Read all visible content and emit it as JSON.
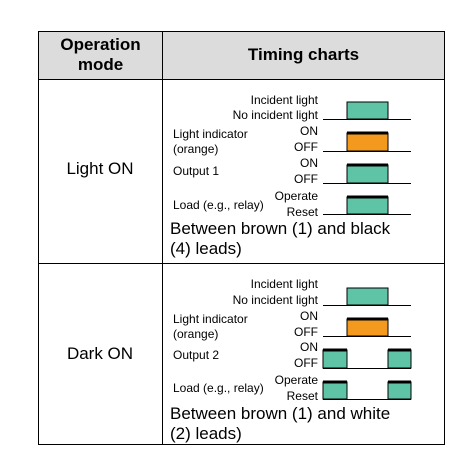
{
  "header": {
    "col1": [
      "Operation",
      "mode"
    ],
    "col2": "Timing charts"
  },
  "rows": [
    {
      "mode": "Light ON",
      "labels": {
        "incident": "Incident light",
        "no_incident": "No incident light",
        "indicator": [
          "Light indicator",
          "(orange)"
        ],
        "on1": "ON",
        "off1": "OFF",
        "output": "Output 1",
        "on2": "ON",
        "off2": "OFF",
        "load": "Load (e.g., relay)",
        "operate": "Operate",
        "reset": "Reset"
      },
      "caption": [
        "Between brown (1) and black",
        "(4) leads)"
      ]
    },
    {
      "mode": "Dark ON",
      "labels": {
        "incident": "Incident light",
        "no_incident": "No incident light",
        "indicator": [
          "Light indicator",
          "(orange)"
        ],
        "on1": "ON",
        "off1": "OFF",
        "output": "Output 2",
        "on2": "ON",
        "off2": "OFF",
        "load": "Load (e.g., relay)",
        "operate": "Operate",
        "reset": "Reset"
      },
      "caption": [
        "Between brown (1) and white",
        "(2) leads)"
      ]
    }
  ],
  "colors": {
    "teal": "#5fc3a6",
    "orange": "#f39a1e",
    "header": "#dcdcdc"
  }
}
